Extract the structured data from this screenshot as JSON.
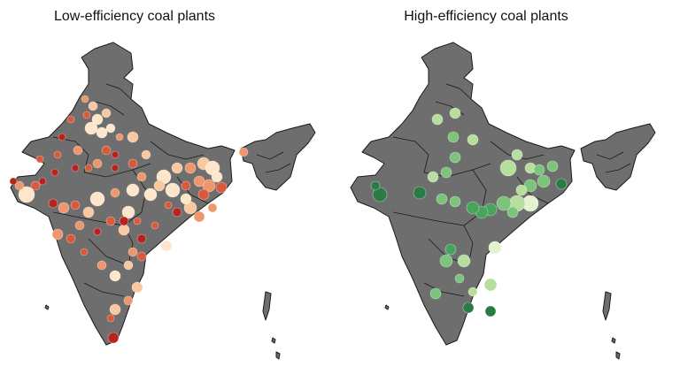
{
  "colors": {
    "land": "#6e6e6e",
    "border": "#1a1a1a",
    "low_scale": [
      "#fde6c9",
      "#f9c7a0",
      "#f0966c",
      "#d95a3a",
      "#b8231d"
    ],
    "high_scale": [
      "#e4f2cf",
      "#b6df9e",
      "#7cc47a",
      "#48a35c",
      "#2c7a46"
    ]
  },
  "panels": {
    "low": {
      "title": "Low-efficiency coal plants",
      "icon": "coal-plant-dot"
    },
    "high": {
      "title": "High-efficiency coal plants",
      "icon": "coal-plant-dot"
    }
  }
}
